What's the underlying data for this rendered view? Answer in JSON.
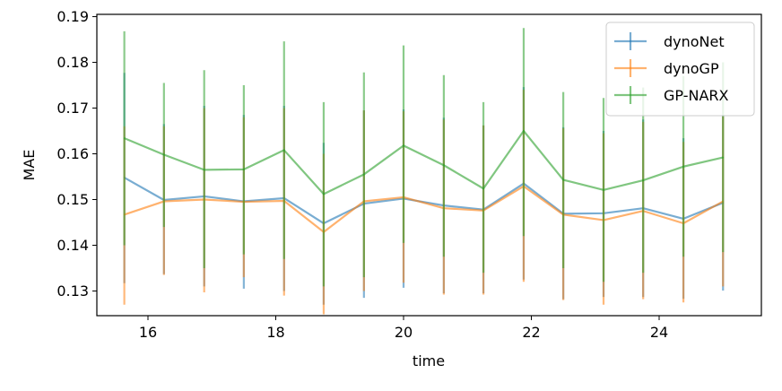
{
  "chart_data": {
    "type": "line",
    "xlabel": "time",
    "ylabel": "MAE",
    "xlim": [
      15.2,
      25.6
    ],
    "ylim": [
      0.1246,
      0.1905
    ],
    "x_ticks": [
      "16",
      "18",
      "20",
      "22",
      "24"
    ],
    "y_ticks": [
      "0.13",
      "0.14",
      "0.15",
      "0.16",
      "0.17",
      "0.18",
      "0.19"
    ],
    "legend_position": "top-right",
    "grid": false,
    "x": [
      15.63,
      16.25,
      16.88,
      17.5,
      18.13,
      18.75,
      19.38,
      20.0,
      20.63,
      21.25,
      21.88,
      22.5,
      23.13,
      23.75,
      24.38,
      25.0
    ],
    "series": [
      {
        "name": "dynoNet",
        "color": "#1f77b4",
        "values": [
          0.1548,
          0.1499,
          0.1507,
          0.1496,
          0.1503,
          0.1448,
          0.1491,
          0.1502,
          0.1487,
          0.1478,
          0.1535,
          0.1469,
          0.147,
          0.1481,
          0.1458,
          0.1493
        ],
        "err_low": [
          0.1317,
          0.1337,
          0.131,
          0.1305,
          0.13,
          0.127,
          0.1285,
          0.1307,
          0.1295,
          0.1295,
          0.1325,
          0.1282,
          0.1287,
          0.1287,
          0.1283,
          0.1301
        ],
        "err_high": [
          0.1777,
          0.1665,
          0.1705,
          0.1685,
          0.1705,
          0.1624,
          0.1695,
          0.1697,
          0.1679,
          0.1662,
          0.1746,
          0.1658,
          0.165,
          0.1675,
          0.1634,
          0.1685
        ]
      },
      {
        "name": "dynoGP",
        "color": "#ff7f0e",
        "values": [
          0.1467,
          0.1496,
          0.15,
          0.1495,
          0.1497,
          0.1429,
          0.1496,
          0.1505,
          0.1481,
          0.1476,
          0.1529,
          0.1467,
          0.1455,
          0.1475,
          0.1448,
          0.1496
        ],
        "err_low": [
          0.127,
          0.1335,
          0.1297,
          0.133,
          0.129,
          0.1249,
          0.13,
          0.1318,
          0.1292,
          0.1292,
          0.132,
          0.128,
          0.127,
          0.1282,
          0.1275,
          0.131
        ],
        "err_high": [
          0.166,
          0.166,
          0.17,
          0.168,
          0.17,
          0.16,
          0.1695,
          0.1693,
          0.1675,
          0.1662,
          0.174,
          0.1656,
          0.1645,
          0.167,
          0.1626,
          0.1682
        ]
      },
      {
        "name": "GP-NARX",
        "color": "#2ca02c",
        "values": [
          0.1634,
          0.1598,
          0.1565,
          0.1566,
          0.1608,
          0.1512,
          0.1555,
          0.1618,
          0.1575,
          0.1524,
          0.165,
          0.1543,
          0.1521,
          0.1542,
          0.1572,
          0.1592
        ],
        "err_low": [
          0.14,
          0.144,
          0.135,
          0.138,
          0.137,
          0.131,
          0.133,
          0.1405,
          0.1375,
          0.134,
          0.142,
          0.135,
          0.132,
          0.134,
          0.1375,
          0.1385
        ],
        "err_high": [
          0.1868,
          0.1755,
          0.1783,
          0.175,
          0.1846,
          0.1713,
          0.1778,
          0.1837,
          0.1772,
          0.1713,
          0.1875,
          0.1735,
          0.1722,
          0.1745,
          0.177,
          0.18
        ]
      }
    ]
  }
}
